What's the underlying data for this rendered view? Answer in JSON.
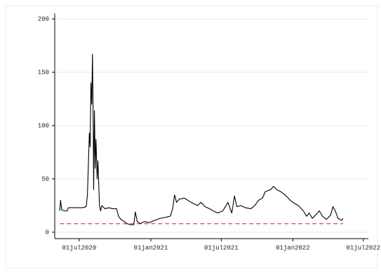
{
  "chart_data": {
    "type": "line",
    "x": [
      "2020-05-12",
      "2020-05-14",
      "2020-05-17",
      "2020-05-24",
      "2020-05-31",
      "2020-06-03",
      "2020-06-20",
      "2020-07-10",
      "2020-07-19",
      "2020-07-22",
      "2020-07-27",
      "2020-07-29",
      "2020-07-31",
      "2020-08-02",
      "2020-08-04",
      "2020-08-06",
      "2020-08-07",
      "2020-08-09",
      "2020-08-11",
      "2020-08-13",
      "2020-08-16",
      "2020-08-18",
      "2020-08-20",
      "2020-08-22",
      "2020-08-25",
      "2020-08-28",
      "2020-09-05",
      "2020-09-15",
      "2020-09-25",
      "2020-10-05",
      "2020-10-10",
      "2020-10-16",
      "2020-10-25",
      "2020-11-01",
      "2020-11-10",
      "2020-11-18",
      "2020-11-22",
      "2020-11-27",
      "2020-12-05",
      "2020-12-15",
      "2020-12-28",
      "2021-01-10",
      "2021-01-25",
      "2021-02-08",
      "2021-02-20",
      "2021-02-26",
      "2021-03-03",
      "2021-03-08",
      "2021-03-15",
      "2021-03-28",
      "2021-04-10",
      "2021-04-20",
      "2021-05-01",
      "2021-05-10",
      "2021-05-20",
      "2021-06-01",
      "2021-06-10",
      "2021-06-22",
      "2021-07-05",
      "2021-07-18",
      "2021-07-28",
      "2021-08-04",
      "2021-08-10",
      "2021-08-20",
      "2021-09-01",
      "2021-09-15",
      "2021-09-25",
      "2021-10-05",
      "2021-10-15",
      "2021-10-22",
      "2021-11-05",
      "2021-11-12",
      "2021-11-20",
      "2021-12-01",
      "2021-12-12",
      "2021-12-25",
      "2022-01-05",
      "2022-01-15",
      "2022-01-28",
      "2022-02-05",
      "2022-02-12",
      "2022-02-20",
      "2022-02-28",
      "2022-03-10",
      "2022-03-18",
      "2022-03-28",
      "2022-04-08",
      "2022-04-14",
      "2022-04-20",
      "2022-04-27",
      "2022-05-02",
      "2022-05-06",
      "2022-05-10"
    ],
    "series": [
      {
        "color": "#000000",
        "values": [
          20,
          30,
          21,
          20,
          20,
          23,
          23,
          23,
          24,
          35,
          93,
          80,
          140,
          120,
          167,
          100,
          40,
          114,
          60,
          87,
          50,
          67,
          46,
          25,
          20,
          25,
          22,
          23,
          22,
          22,
          15,
          12,
          10,
          8,
          7,
          7,
          19,
          10,
          8,
          10,
          9,
          11,
          13,
          14,
          15,
          22,
          35,
          28,
          31,
          32,
          29,
          27,
          25,
          28,
          24,
          22,
          20,
          18,
          20,
          28,
          18,
          34,
          24,
          25,
          23,
          22,
          25,
          30,
          32,
          38,
          40,
          43,
          40,
          38,
          35,
          30,
          27,
          25,
          20,
          15,
          18,
          13,
          16,
          20,
          15,
          12,
          16,
          24,
          20,
          13,
          12,
          11,
          13
        ]
      }
    ],
    "reference_line": {
      "value": 8,
      "color": "#e8423f"
    },
    "xlim": [
      "2020-04-29",
      "2022-07-14"
    ],
    "xticks": [
      {
        "value": "2020-07-01",
        "label": "01jul2020"
      },
      {
        "value": "2021-01-01",
        "label": "01jan2021"
      },
      {
        "value": "2021-07-01",
        "label": "01jul2021"
      },
      {
        "value": "2022-01-01",
        "label": "01jan2022"
      },
      {
        "value": "2022-07-01",
        "label": "01jul2022"
      }
    ],
    "ylim": [
      -6,
      205
    ],
    "yticks": [
      0,
      50,
      100,
      150,
      200
    ],
    "grid": true
  }
}
